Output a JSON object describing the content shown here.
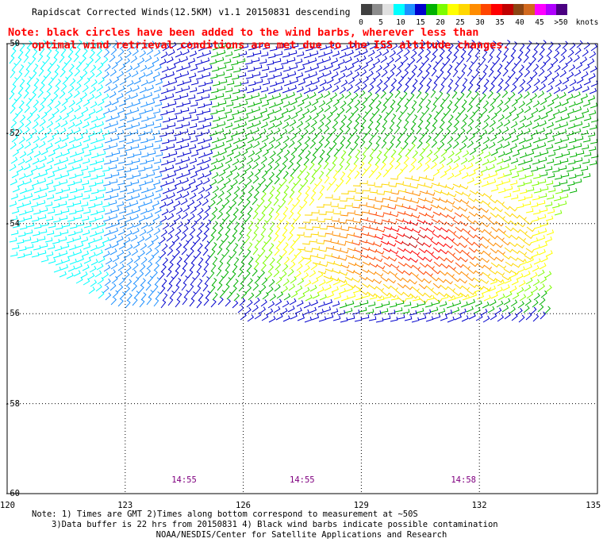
{
  "title": "Rapidscat Corrected Winds(12.5KM) v1.1 20150831 descending",
  "note": "Note: black circles have been added to the wind barbs, wherever less than optimal wind retrieval conditions are met due to the ISS altitude changes.",
  "legend": {
    "unit": "knots",
    "bins": [
      {
        "color": "#404040"
      },
      {
        "color": "#8c8c8c"
      },
      {
        "color": "#e0e0e0"
      },
      {
        "color": "#00ffff"
      },
      {
        "color": "#1e90ff"
      },
      {
        "color": "#0000cd"
      },
      {
        "color": "#00b000"
      },
      {
        "color": "#7cfc00"
      },
      {
        "color": "#ffff00"
      },
      {
        "color": "#ffd700"
      },
      {
        "color": "#ff8c00"
      },
      {
        "color": "#ff4500"
      },
      {
        "color": "#ff0000"
      },
      {
        "color": "#c00000"
      },
      {
        "color": "#8b4513"
      },
      {
        "color": "#d2691e"
      },
      {
        "color": "#ff00ff"
      },
      {
        "color": "#b000ff"
      },
      {
        "color": "#4b0082"
      }
    ],
    "ticks": [
      "0",
      "5",
      "10",
      "15",
      "20",
      "25",
      "30",
      "35",
      "40",
      "45",
      ">50"
    ]
  },
  "map": {
    "lon_range": [
      120,
      135
    ],
    "lat_range": [
      -60,
      -50
    ],
    "lon_ticks": [
      "120",
      "123",
      "126",
      "129",
      "132",
      "135"
    ],
    "lat_ticks": [
      "-50",
      "-52",
      "-54",
      "-56",
      "-58",
      "-60"
    ],
    "times": [
      {
        "label": "14:55",
        "lon": 124.5
      },
      {
        "label": "14:55",
        "lon": 127.5
      },
      {
        "label": "14:58",
        "lon": 131.6
      }
    ],
    "grid": "dotted"
  },
  "footnotes": [
    "Note: 1) Times are GMT 2)Times along bottom correspond to measurement at ~50S",
    "3)Data buffer is 22 hrs from 20150831 4) Black wind barbs indicate possible contamination"
  ],
  "credit": "NOAA/NESDIS/Center for Satellite Applications and Research"
}
